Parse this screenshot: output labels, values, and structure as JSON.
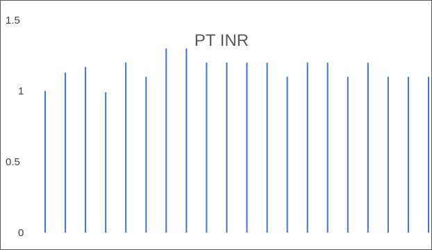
{
  "chart_data": {
    "type": "bar",
    "title": "PT INR",
    "xlabel": "",
    "ylabel": "",
    "ylim": [
      0,
      1.5
    ],
    "yticks": [
      "0",
      "0.5",
      "1",
      "1.5"
    ],
    "ytick_values": [
      0,
      0.5,
      1,
      1.5
    ],
    "grid": false,
    "legend": "none",
    "series": [
      {
        "values": [
          1.0,
          1.13,
          1.17,
          0.99,
          1.2,
          1.1,
          1.3,
          1.3,
          1.2,
          1.2,
          1.2,
          1.2,
          1.1,
          1.2,
          1.2,
          1.1,
          1.2,
          1.1,
          1.1,
          1.1
        ],
        "color": "#4472C4"
      }
    ]
  },
  "colors": {
    "bar": "#4472C4",
    "frame": "#595959",
    "text": "#404040",
    "title": "#595959"
  }
}
